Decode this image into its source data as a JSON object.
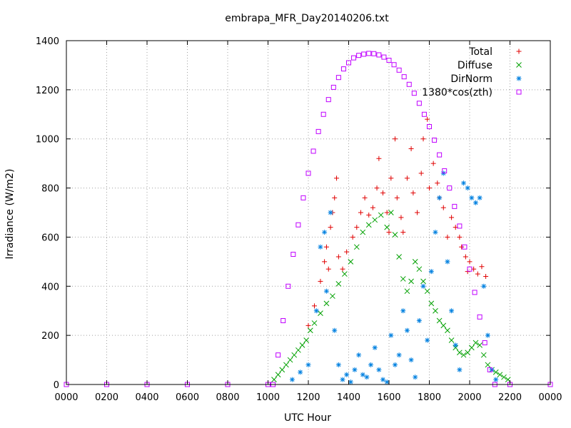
{
  "chart_data": {
    "type": "scatter",
    "title": "embrapa_MFR_Day20140206.txt",
    "xlabel": "UTC Hour",
    "ylabel": "Irradiance (W/m2)",
    "xlim": [
      0,
      24
    ],
    "ylim": [
      0,
      1400
    ],
    "x_ticks": [
      {
        "value": 0,
        "label": "0000"
      },
      {
        "value": 2,
        "label": "0200"
      },
      {
        "value": 4,
        "label": "0400"
      },
      {
        "value": 6,
        "label": "0600"
      },
      {
        "value": 8,
        "label": "0800"
      },
      {
        "value": 10,
        "label": "1000"
      },
      {
        "value": 12,
        "label": "1200"
      },
      {
        "value": 14,
        "label": "1400"
      },
      {
        "value": 16,
        "label": "1600"
      },
      {
        "value": 18,
        "label": "1800"
      },
      {
        "value": 20,
        "label": "2000"
      },
      {
        "value": 22,
        "label": "2200"
      },
      {
        "value": 24,
        "label": "0000"
      }
    ],
    "y_ticks": [
      0,
      200,
      400,
      600,
      800,
      1000,
      1200,
      1400
    ],
    "grid": true,
    "legend_position": "top-right",
    "series": [
      {
        "name": "Total",
        "marker": "plus",
        "color": "#e00000",
        "points": [
          [
            12.0,
            240
          ],
          [
            12.3,
            320
          ],
          [
            12.6,
            420
          ],
          [
            12.8,
            500
          ],
          [
            12.9,
            560
          ],
          [
            13.0,
            470
          ],
          [
            13.1,
            640
          ],
          [
            13.2,
            700
          ],
          [
            13.3,
            760
          ],
          [
            13.4,
            840
          ],
          [
            13.5,
            520
          ],
          [
            13.7,
            470
          ],
          [
            13.9,
            540
          ],
          [
            14.2,
            600
          ],
          [
            14.4,
            640
          ],
          [
            14.6,
            700
          ],
          [
            14.8,
            760
          ],
          [
            15.0,
            690
          ],
          [
            15.2,
            720
          ],
          [
            15.4,
            800
          ],
          [
            15.5,
            920
          ],
          [
            15.7,
            780
          ],
          [
            15.9,
            700
          ],
          [
            16.0,
            620
          ],
          [
            16.1,
            840
          ],
          [
            16.3,
            1000
          ],
          [
            16.4,
            760
          ],
          [
            16.6,
            680
          ],
          [
            16.7,
            620
          ],
          [
            16.9,
            840
          ],
          [
            17.1,
            960
          ],
          [
            17.2,
            780
          ],
          [
            17.4,
            700
          ],
          [
            17.6,
            860
          ],
          [
            17.7,
            1000
          ],
          [
            17.9,
            1080
          ],
          [
            18.0,
            800
          ],
          [
            18.2,
            900
          ],
          [
            18.4,
            820
          ],
          [
            18.5,
            760
          ],
          [
            18.7,
            720
          ],
          [
            18.9,
            600
          ],
          [
            19.1,
            680
          ],
          [
            19.3,
            640
          ],
          [
            19.5,
            600
          ],
          [
            19.6,
            560
          ],
          [
            19.8,
            520
          ],
          [
            19.9,
            460
          ],
          [
            20.0,
            500
          ],
          [
            20.2,
            470
          ],
          [
            20.4,
            450
          ],
          [
            20.6,
            480
          ],
          [
            20.8,
            440
          ]
        ]
      },
      {
        "name": "Diffuse",
        "marker": "cross",
        "color": "#00a000",
        "points": [
          [
            10.3,
            20
          ],
          [
            10.5,
            40
          ],
          [
            10.7,
            60
          ],
          [
            10.9,
            80
          ],
          [
            11.1,
            100
          ],
          [
            11.3,
            120
          ],
          [
            11.5,
            140
          ],
          [
            11.7,
            160
          ],
          [
            11.9,
            180
          ],
          [
            12.1,
            220
          ],
          [
            12.3,
            250
          ],
          [
            12.6,
            290
          ],
          [
            12.9,
            330
          ],
          [
            13.2,
            360
          ],
          [
            13.5,
            410
          ],
          [
            13.8,
            450
          ],
          [
            14.1,
            500
          ],
          [
            14.4,
            560
          ],
          [
            14.7,
            620
          ],
          [
            15.0,
            650
          ],
          [
            15.3,
            670
          ],
          [
            15.6,
            690
          ],
          [
            15.9,
            640
          ],
          [
            16.1,
            700
          ],
          [
            16.3,
            610
          ],
          [
            16.5,
            520
          ],
          [
            16.7,
            430
          ],
          [
            16.9,
            380
          ],
          [
            17.1,
            420
          ],
          [
            17.3,
            500
          ],
          [
            17.5,
            470
          ],
          [
            17.7,
            420
          ],
          [
            17.9,
            380
          ],
          [
            18.1,
            330
          ],
          [
            18.3,
            300
          ],
          [
            18.5,
            260
          ],
          [
            18.7,
            240
          ],
          [
            18.9,
            220
          ],
          [
            19.1,
            180
          ],
          [
            19.3,
            150
          ],
          [
            19.5,
            130
          ],
          [
            19.7,
            120
          ],
          [
            19.9,
            130
          ],
          [
            20.1,
            150
          ],
          [
            20.3,
            170
          ],
          [
            20.5,
            160
          ],
          [
            20.7,
            120
          ],
          [
            20.9,
            80
          ],
          [
            21.1,
            60
          ],
          [
            21.3,
            50
          ],
          [
            21.5,
            40
          ],
          [
            21.7,
            30
          ],
          [
            21.9,
            20
          ]
        ]
      },
      {
        "name": "DirNorm",
        "marker": "star",
        "color": "#0080e0",
        "points": [
          [
            11.2,
            20
          ],
          [
            11.6,
            50
          ],
          [
            12.0,
            80
          ],
          [
            12.4,
            300
          ],
          [
            12.6,
            560
          ],
          [
            12.8,
            620
          ],
          [
            12.9,
            380
          ],
          [
            13.1,
            700
          ],
          [
            13.3,
            220
          ],
          [
            13.5,
            80
          ],
          [
            13.7,
            20
          ],
          [
            13.9,
            40
          ],
          [
            14.1,
            10
          ],
          [
            14.3,
            60
          ],
          [
            14.5,
            120
          ],
          [
            14.7,
            40
          ],
          [
            14.9,
            30
          ],
          [
            15.1,
            80
          ],
          [
            15.3,
            150
          ],
          [
            15.5,
            60
          ],
          [
            15.7,
            20
          ],
          [
            15.9,
            10
          ],
          [
            16.1,
            200
          ],
          [
            16.3,
            80
          ],
          [
            16.5,
            120
          ],
          [
            16.7,
            300
          ],
          [
            16.9,
            220
          ],
          [
            17.1,
            100
          ],
          [
            17.3,
            30
          ],
          [
            17.5,
            260
          ],
          [
            17.7,
            400
          ],
          [
            17.9,
            180
          ],
          [
            18.1,
            460
          ],
          [
            18.3,
            620
          ],
          [
            18.5,
            760
          ],
          [
            18.7,
            860
          ],
          [
            18.9,
            500
          ],
          [
            19.1,
            300
          ],
          [
            19.3,
            160
          ],
          [
            19.5,
            60
          ],
          [
            19.7,
            820
          ],
          [
            19.9,
            800
          ],
          [
            20.1,
            760
          ],
          [
            20.3,
            740
          ],
          [
            20.5,
            760
          ],
          [
            20.7,
            400
          ],
          [
            20.9,
            200
          ],
          [
            21.1,
            60
          ],
          [
            21.3,
            20
          ]
        ]
      },
      {
        "name": "1380*cos(zth)",
        "marker": "square",
        "color": "#c000ff",
        "points": [
          [
            0.0,
            0
          ],
          [
            2.0,
            0
          ],
          [
            4.0,
            0
          ],
          [
            6.0,
            0
          ],
          [
            8.0,
            0
          ],
          [
            10.0,
            0
          ],
          [
            10.25,
            0
          ],
          [
            10.5,
            120
          ],
          [
            10.75,
            260
          ],
          [
            11.0,
            400
          ],
          [
            11.25,
            530
          ],
          [
            11.5,
            650
          ],
          [
            11.75,
            760
          ],
          [
            12.0,
            860
          ],
          [
            12.25,
            950
          ],
          [
            12.5,
            1030
          ],
          [
            12.75,
            1100
          ],
          [
            13.0,
            1160
          ],
          [
            13.25,
            1210
          ],
          [
            13.5,
            1250
          ],
          [
            13.75,
            1285
          ],
          [
            14.0,
            1310
          ],
          [
            14.25,
            1330
          ],
          [
            14.5,
            1340
          ],
          [
            14.75,
            1345
          ],
          [
            15.0,
            1348
          ],
          [
            15.25,
            1347
          ],
          [
            15.5,
            1342
          ],
          [
            15.75,
            1333
          ],
          [
            16.0,
            1320
          ],
          [
            16.25,
            1302
          ],
          [
            16.5,
            1280
          ],
          [
            16.75,
            1253
          ],
          [
            17.0,
            1222
          ],
          [
            17.25,
            1186
          ],
          [
            17.5,
            1145
          ],
          [
            17.75,
            1100
          ],
          [
            18.0,
            1050
          ],
          [
            18.25,
            995
          ],
          [
            18.5,
            935
          ],
          [
            18.75,
            870
          ],
          [
            19.0,
            800
          ],
          [
            19.25,
            725
          ],
          [
            19.5,
            645
          ],
          [
            19.75,
            560
          ],
          [
            20.0,
            470
          ],
          [
            20.25,
            375
          ],
          [
            20.5,
            275
          ],
          [
            20.75,
            170
          ],
          [
            21.0,
            60
          ],
          [
            21.25,
            0
          ],
          [
            22.0,
            0
          ],
          [
            24.0,
            0
          ]
        ]
      }
    ]
  }
}
